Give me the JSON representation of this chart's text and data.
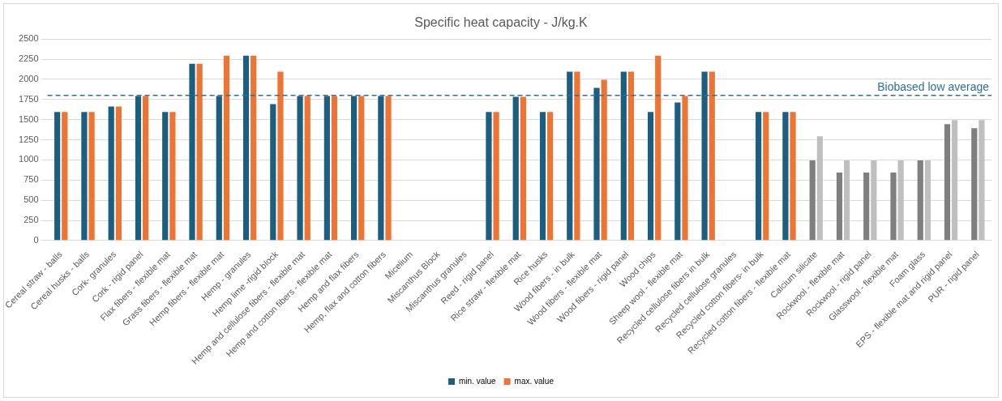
{
  "chart_data": {
    "type": "bar",
    "title": "Specific heat capacity - J/kg.K",
    "categories": [
      "Cereal straw - balls",
      "Cereal husks - balls",
      "Cork- granules",
      "Cork - rigid panel",
      "Flax fibers - flexible mat",
      "Grass fibers - flexible mat",
      "Hemp fibers - flexible mat",
      "Hemp - granules",
      "Hemp lime -rigid block",
      "Hemp and cellulose fibers - flexible mat",
      "Hemp and cotton fibers - flexible mat",
      "Hemp and flax fibers",
      "Hemp, flax and cotton fibers",
      "Micelium",
      "Miscanthus Block",
      "Miscanthus granules",
      "Reed - rigid panel",
      "Rice straw - flexible mat",
      "Rice husks",
      "Wood fibers - in bulk",
      "Wood fibers - flexible mat",
      "Wood fibers - rigid panel",
      "Wood chips",
      "Sheep wool - flexible mat",
      "Recycled cellulose fibers in bulk",
      "Recycled cellulose granules",
      "Recycled cotton fibers- in bulk",
      "Recycled cotton fibers - flexible mat",
      "Calcium silicate",
      "Rockwool - flexible mat",
      "Rockwool - rigid panel",
      "Glasswool - flexible mat",
      "Foam glass",
      "EPS - flexible mat and rigid panel",
      "PUR - rigid panel"
    ],
    "series": [
      {
        "name": "min. value",
        "color": "#1b5e80",
        "colors": [
          "#1b5e80",
          "#1b5e80",
          "#1b5e80",
          "#1b5e80",
          "#1b5e80",
          "#1b5e80",
          "#1b5e80",
          "#1b5e80",
          "#1b5e80",
          "#1b5e80",
          "#1b5e80",
          "#1b5e80",
          "#1b5e80",
          "#1b5e80",
          "#1b5e80",
          "#1b5e80",
          "#1b5e80",
          "#1b5e80",
          "#1b5e80",
          "#1b5e80",
          "#1b5e80",
          "#1b5e80",
          "#1b5e80",
          "#1b5e80",
          "#1b5e80",
          "#1b5e80",
          "#1b5e80",
          "#1b5e80",
          "#7f7f7f",
          "#7f7f7f",
          "#7f7f7f",
          "#7f7f7f",
          "#7f7f7f",
          "#7f7f7f",
          "#7f7f7f"
        ],
        "values": [
          1600,
          1600,
          1670,
          1800,
          1600,
          2200,
          1800,
          2300,
          1700,
          1800,
          1800,
          1800,
          1800,
          null,
          null,
          null,
          1600,
          1790,
          1600,
          2100,
          1900,
          2100,
          1600,
          1720,
          2100,
          null,
          1600,
          1600,
          1000,
          850,
          850,
          850,
          1000,
          1450,
          1400
        ]
      },
      {
        "name": "max. value",
        "color": "#ed7433",
        "colors": [
          "#ed7433",
          "#ed7433",
          "#ed7433",
          "#ed7433",
          "#ed7433",
          "#ed7433",
          "#ed7433",
          "#ed7433",
          "#ed7433",
          "#ed7433",
          "#ed7433",
          "#ed7433",
          "#ed7433",
          "#ed7433",
          "#ed7433",
          "#ed7433",
          "#ed7433",
          "#ed7433",
          "#ed7433",
          "#ed7433",
          "#ed7433",
          "#ed7433",
          "#ed7433",
          "#ed7433",
          "#ed7433",
          "#ed7433",
          "#ed7433",
          "#ed7433",
          "#bfbfbf",
          "#bfbfbf",
          "#bfbfbf",
          "#bfbfbf",
          "#bfbfbf",
          "#bfbfbf",
          "#bfbfbf"
        ],
        "values": [
          1600,
          1600,
          1670,
          1800,
          1600,
          2200,
          2300,
          2300,
          2100,
          1800,
          1800,
          1800,
          1800,
          null,
          null,
          null,
          1600,
          1790,
          1600,
          2100,
          2000,
          2100,
          2300,
          1800,
          2100,
          null,
          1600,
          1600,
          1300,
          1000,
          1000,
          1000,
          1000,
          1500,
          1500
        ]
      }
    ],
    "ylim": [
      0,
      2500
    ],
    "yticks": [
      0,
      250,
      500,
      750,
      1000,
      1250,
      1500,
      1750,
      2000,
      2250,
      2500
    ],
    "grid": "y",
    "legend": "bottom",
    "ref_lines": [
      {
        "axis": "y",
        "value": 1800,
        "label": "Biobased low average",
        "color": "#2e7196",
        "line_style": "dashed"
      }
    ]
  }
}
